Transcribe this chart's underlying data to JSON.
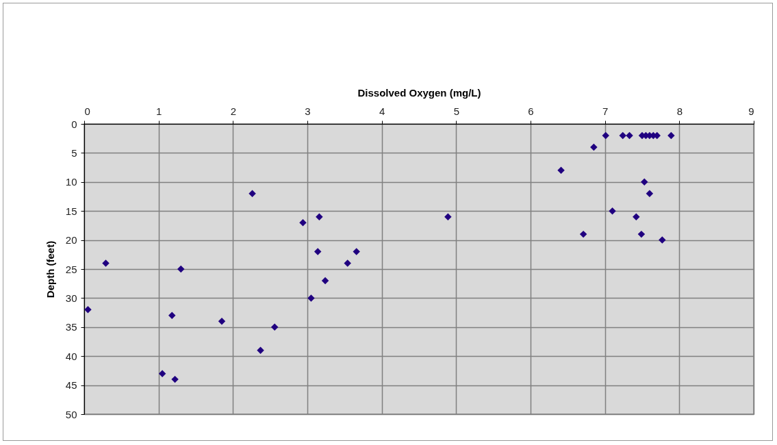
{
  "chart_data": {
    "type": "scatter",
    "xlabel": "Dissolved Oxygen (mg/L)",
    "ylabel": "Depth (feet)",
    "x": [
      7.01,
      7.24,
      7.33,
      7.5,
      7.55,
      7.6,
      7.65,
      7.7,
      7.89,
      6.85,
      6.41,
      7.53,
      7.6,
      2.26,
      7.1,
      2.94,
      3.16,
      4.89,
      7.42,
      6.71,
      7.49,
      7.77,
      0.29,
      1.3,
      3.14,
      3.66,
      3.54,
      3.24,
      3.05,
      0.05,
      1.18,
      1.85,
      2.56,
      2.37,
      1.05,
      1.22
    ],
    "series": [
      {
        "color": "#200080",
        "values": [
          2,
          2,
          2,
          2,
          2,
          2,
          2,
          2,
          2,
          4,
          8,
          10,
          12,
          12,
          15,
          17,
          16,
          16,
          16,
          19,
          19,
          20,
          24,
          25,
          22,
          22,
          24,
          27,
          30,
          32,
          33,
          34,
          35,
          39,
          43,
          44
        ]
      }
    ],
    "xlim": [
      0,
      9
    ],
    "xticks": [
      0,
      1,
      2,
      3,
      4,
      5,
      6,
      7,
      8,
      9
    ],
    "ylim": [
      50,
      0
    ],
    "yticks": [
      0,
      5,
      10,
      15,
      20,
      25,
      30,
      35,
      40,
      45,
      50
    ],
    "grid": true,
    "marker": "diamond"
  }
}
